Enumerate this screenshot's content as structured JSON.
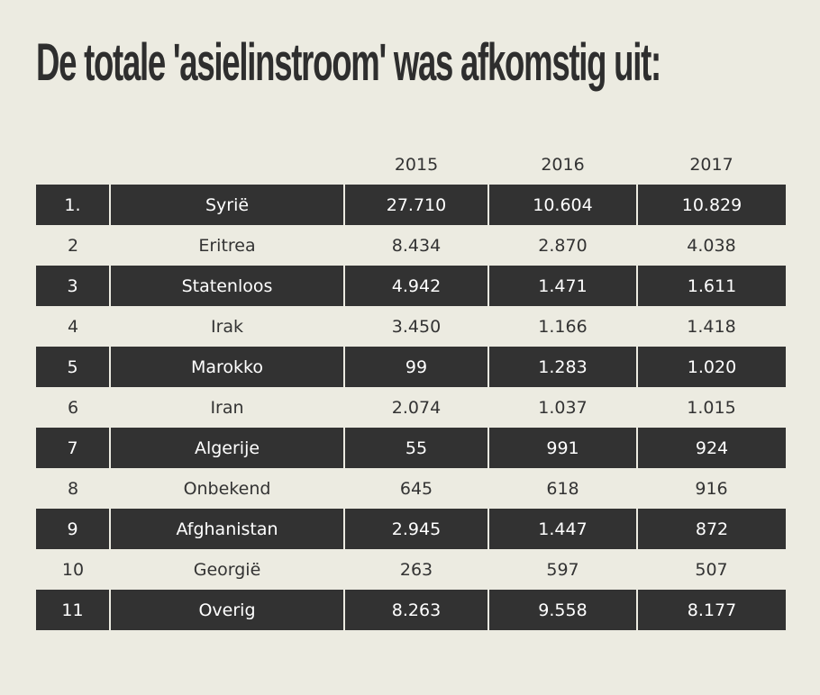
{
  "title": "De totale 'asielinstroom' was afkomstig uit:",
  "table": {
    "headers": [
      "",
      "",
      "2015",
      "2016",
      "2017"
    ],
    "rows": [
      [
        "1.",
        "Syrië",
        "27.710",
        "10.604",
        "10.829"
      ],
      [
        "2",
        "Eritrea",
        "8.434",
        "2.870",
        "4.038"
      ],
      [
        "3",
        "Statenloos",
        "4.942",
        "1.471",
        "1.611"
      ],
      [
        "4",
        "Irak",
        "3.450",
        "1.166",
        "1.418"
      ],
      [
        "5",
        "Marokko",
        "99",
        "1.283",
        "1.020"
      ],
      [
        "6",
        "Iran",
        "2.074",
        "1.037",
        "1.015"
      ],
      [
        "7",
        "Algerije",
        "55",
        "991",
        "924"
      ],
      [
        "8",
        "Onbekend",
        "645",
        "618",
        "916"
      ],
      [
        "9",
        "Afghanistan",
        "2.945",
        "1.447",
        "872"
      ],
      [
        "10",
        "Georgië",
        "263",
        "597",
        "507"
      ],
      [
        "11",
        "Overig",
        "8.263",
        "9.558",
        "8.177"
      ]
    ]
  },
  "colors": {
    "background": "#ecebe1",
    "dark_row": "#323232",
    "dark_row_text": "#ffffff",
    "text": "#333333"
  }
}
